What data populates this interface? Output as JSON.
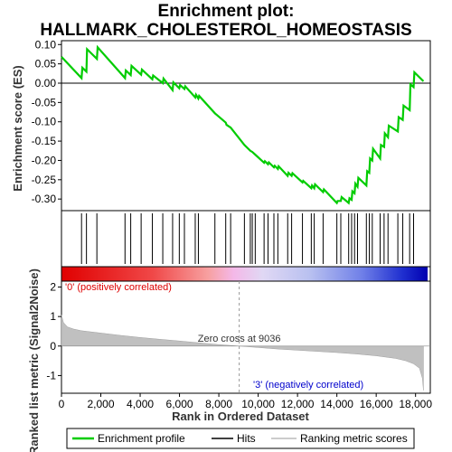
{
  "chart_data": {
    "type": "line",
    "title_line1": "Enrichment plot:",
    "title_line2": "HALLMARK_CHOLESTEROL_HOMEOSTASIS",
    "top_panel": {
      "ylabel": "Enrichment score (ES)",
      "ylim": [
        -0.33,
        0.11
      ],
      "yticks": [
        "0.10",
        "0.05",
        "0.00",
        "-0.05",
        "-0.10",
        "-0.15",
        "-0.20",
        "-0.25",
        "-0.30"
      ],
      "ytick_values": [
        0.1,
        0.05,
        0.0,
        -0.05,
        -0.1,
        -0.15,
        -0.2,
        -0.25,
        -0.3
      ],
      "series": [
        {
          "name": "Enrichment profile",
          "color": "#00cc00",
          "x": [
            0,
            1020,
            1060,
            1270,
            1300,
            1800,
            1840,
            3230,
            3270,
            3520,
            3560,
            4050,
            4090,
            4620,
            4660,
            5150,
            5190,
            5650,
            5690,
            5990,
            6030,
            6250,
            6290,
            6800,
            6840,
            6960,
            7000,
            7800,
            8350,
            8390,
            8600,
            9300,
            9600,
            9700,
            9850,
            10300,
            10340,
            10500,
            10540,
            10800,
            10840,
            11000,
            11040,
            11500,
            11540,
            11700,
            11740,
            12250,
            12290,
            12700,
            12740,
            12850,
            12890,
            13300,
            13340,
            14000,
            14040,
            14200,
            14240,
            14600,
            14640,
            14750,
            14790,
            14900,
            14940,
            15050,
            15090,
            15500,
            15540,
            15650,
            15690,
            15800,
            15840,
            16200,
            16240,
            16400,
            16440,
            16600,
            16640,
            17100,
            17140,
            17350,
            17390,
            17700,
            17740,
            17900,
            17940,
            18400
          ],
          "y": [
            0.068,
            0.013,
            0.04,
            0.03,
            0.088,
            0.063,
            0.093,
            0.013,
            0.033,
            0.021,
            0.045,
            0.022,
            0.035,
            0.01,
            0.02,
            0.0,
            0.012,
            -0.018,
            0.002,
            -0.013,
            -0.005,
            -0.015,
            -0.008,
            -0.037,
            -0.03,
            -0.04,
            -0.033,
            -0.078,
            -0.102,
            -0.108,
            -0.115,
            -0.16,
            -0.175,
            -0.178,
            -0.185,
            -0.206,
            -0.202,
            -0.21,
            -0.205,
            -0.218,
            -0.214,
            -0.222,
            -0.215,
            -0.24,
            -0.232,
            -0.24,
            -0.233,
            -0.257,
            -0.253,
            -0.272,
            -0.265,
            -0.272,
            -0.262,
            -0.282,
            -0.275,
            -0.31,
            -0.305,
            -0.305,
            -0.295,
            -0.31,
            -0.298,
            -0.302,
            -0.28,
            -0.285,
            -0.26,
            -0.268,
            -0.245,
            -0.265,
            -0.228,
            -0.232,
            -0.195,
            -0.2,
            -0.17,
            -0.195,
            -0.16,
            -0.165,
            -0.13,
            -0.14,
            -0.11,
            -0.125,
            -0.088,
            -0.095,
            -0.058,
            -0.07,
            -0.003,
            -0.01,
            0.028,
            0.005
          ]
        }
      ]
    },
    "hits": [
      1020,
      1270,
      1800,
      3230,
      3520,
      4050,
      4620,
      5150,
      5650,
      5990,
      6250,
      6800,
      6960,
      7800,
      8350,
      8600,
      9300,
      9600,
      9700,
      9850,
      10300,
      10500,
      10800,
      11000,
      11500,
      11700,
      12250,
      12700,
      12850,
      13300,
      14000,
      14200,
      14600,
      14750,
      14900,
      15050,
      15500,
      15650,
      15800,
      16200,
      16400,
      16600,
      17100,
      17350,
      17700,
      17900
    ],
    "bottom_panel": {
      "ylabel": "Ranked list metric (Signal2Noise)",
      "xlabel": "Rank in Ordered Dataset",
      "xlim": [
        0,
        18750
      ],
      "ylim": [
        -1.6,
        2.2
      ],
      "yticks": [
        "2",
        "1",
        "0",
        "-1"
      ],
      "ytick_values": [
        2,
        1,
        0,
        -1
      ],
      "xticks": [
        "0",
        "2,000",
        "4,000",
        "6,000",
        "8,000",
        "10,000",
        "12,000",
        "14,000",
        "16,000",
        "18,000"
      ],
      "xtick_values": [
        0,
        2000,
        4000,
        6000,
        8000,
        10000,
        12000,
        14000,
        16000,
        18000
      ],
      "zero_cross": 9036,
      "zero_cross_label": "Zero cross at 9036",
      "pos_label": "'0' (positively correlated)",
      "neg_label": "'3' (negatively correlated)",
      "metric_x": [
        0,
        100,
        300,
        600,
        1000,
        2000,
        3000,
        4000,
        5000,
        6000,
        7000,
        8000,
        9036,
        10000,
        11000,
        12000,
        13000,
        14000,
        15000,
        16000,
        17000,
        17500,
        17900,
        18200,
        18350,
        18400
      ],
      "metric_y": [
        1.05,
        0.8,
        0.65,
        0.58,
        0.52,
        0.44,
        0.36,
        0.29,
        0.23,
        0.17,
        0.11,
        0.05,
        0.0,
        -0.05,
        -0.1,
        -0.14,
        -0.18,
        -0.22,
        -0.27,
        -0.33,
        -0.42,
        -0.5,
        -0.6,
        -0.75,
        -1.1,
        -1.5
      ]
    },
    "legend": [
      {
        "label": "Enrichment profile",
        "color": "#00cc00"
      },
      {
        "label": "Hits",
        "color": "#000000"
      },
      {
        "label": "Ranking metric scores",
        "color": "#bbbbbb"
      }
    ]
  }
}
